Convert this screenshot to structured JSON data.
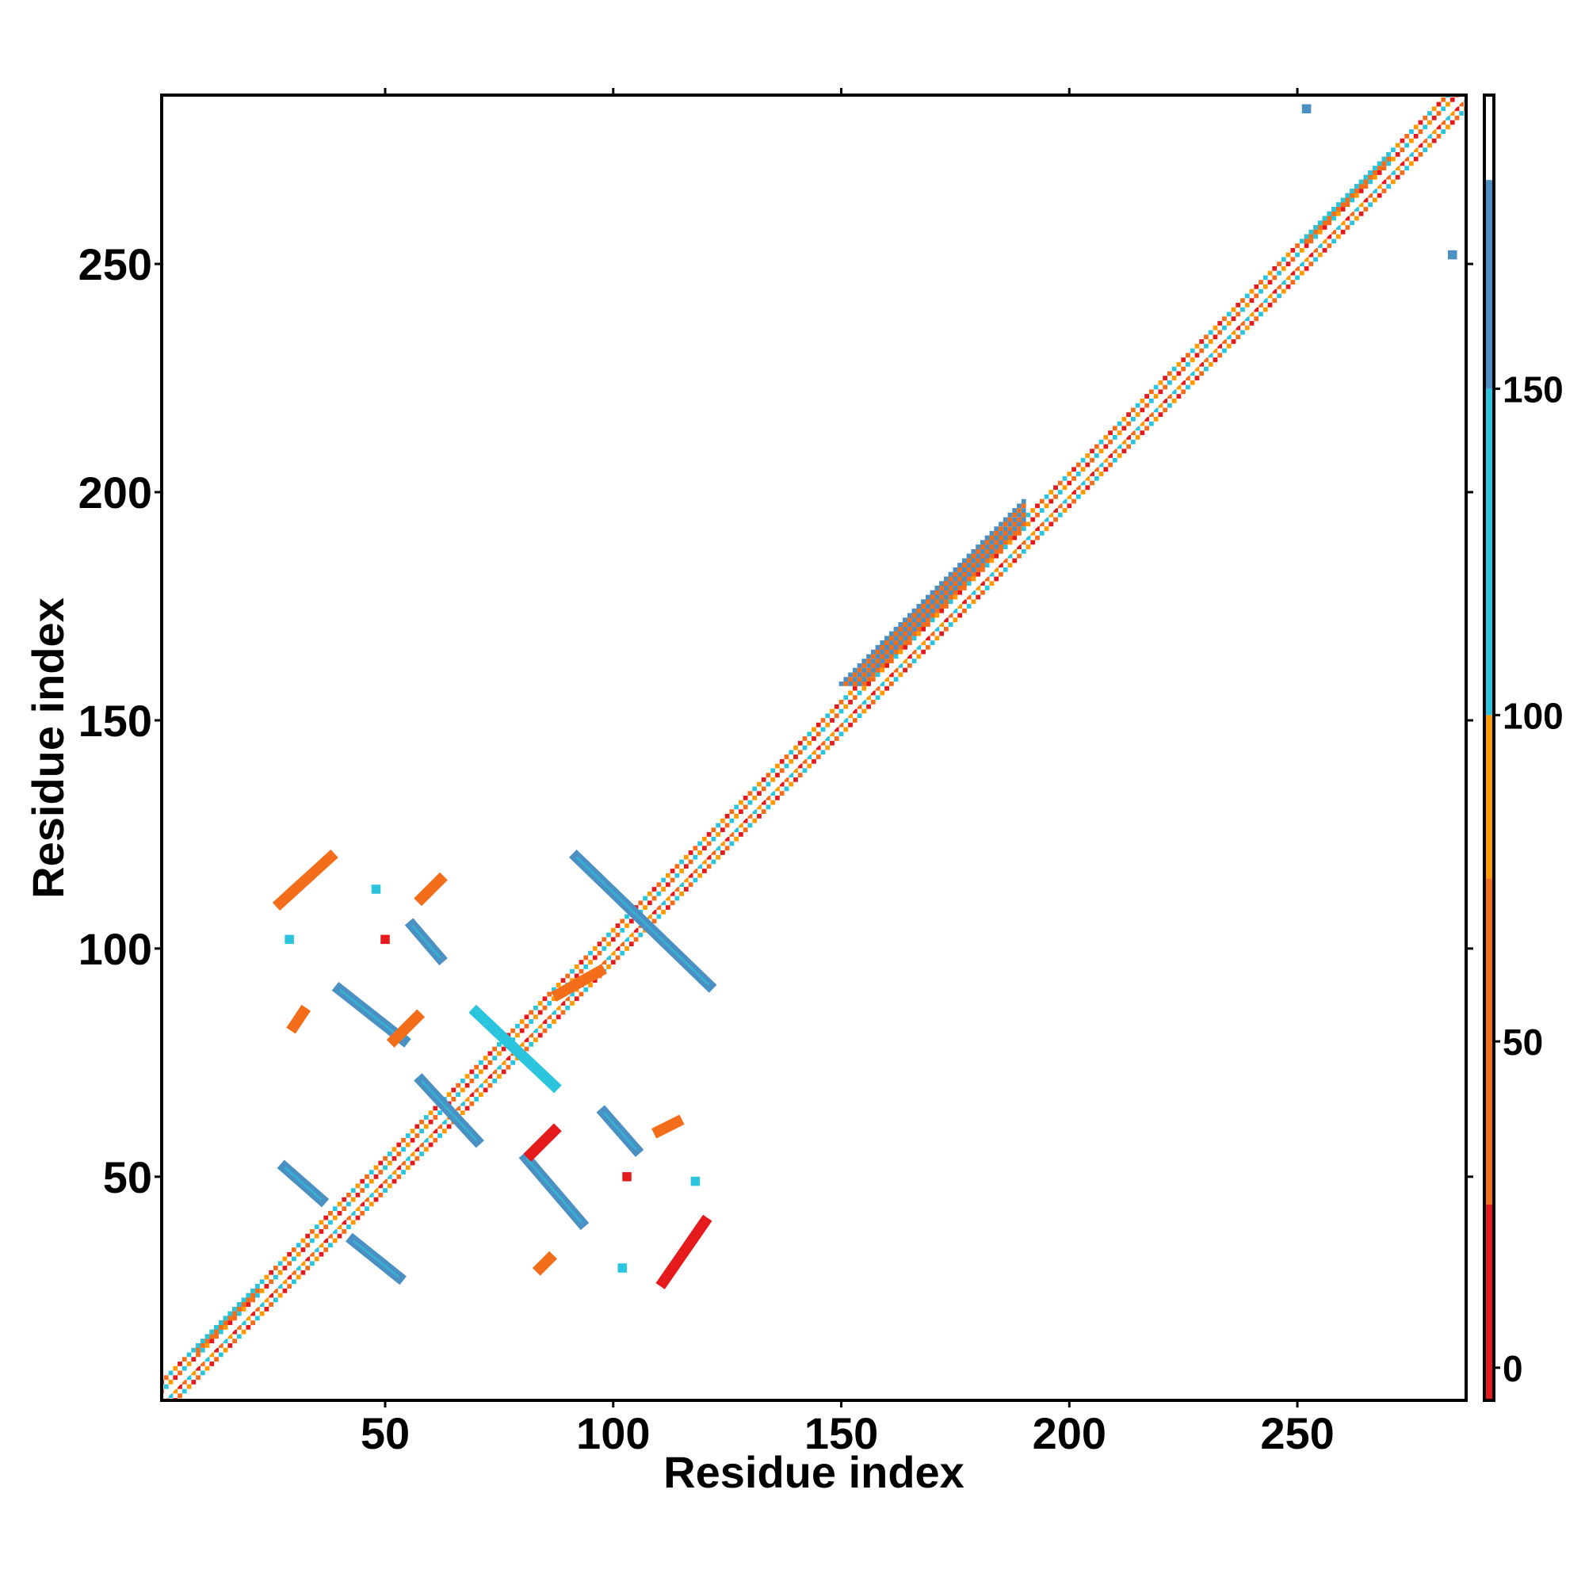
{
  "chart_data": {
    "type": "heatmap",
    "xlabel": "Residue index",
    "ylabel": "Residue index",
    "xlim": [
      1,
      287
    ],
    "ylim": [
      1,
      287
    ],
    "x_ticks": [
      50,
      100,
      150,
      200,
      250
    ],
    "y_ticks": [
      50,
      100,
      150,
      200,
      250
    ],
    "colorbar": {
      "ticks": [
        0,
        50,
        100,
        150
      ],
      "range": [
        -5,
        195
      ],
      "bands": [
        {
          "from": -5,
          "to": 25,
          "color": "#e41a1c"
        },
        {
          "from": 25,
          "to": 75,
          "color": "#f46d1a"
        },
        {
          "from": 75,
          "to": 100,
          "color": "#ff9900"
        },
        {
          "from": 100,
          "to": 150,
          "color": "#2bc4dd"
        },
        {
          "from": 150,
          "to": 182,
          "color": "#4a90c2"
        },
        {
          "from": 182,
          "to": 195,
          "color": "#ffffff"
        }
      ]
    },
    "diagonal": {
      "from": 1,
      "to": 287,
      "core_color": "#ffffff",
      "colors": [
        "#ff9900",
        "#e41a1c",
        "#f46d1a",
        "#2bc4dd"
      ]
    },
    "diagonal_widenings": [
      {
        "from": 12,
        "to": 22,
        "width": 2,
        "color": "#2bc4dd"
      },
      {
        "from": 158,
        "to": 190,
        "width": 6,
        "color": "#4a90c2"
      },
      {
        "from": 255,
        "to": 270,
        "width": 2,
        "color": "#2bc4dd"
      }
    ],
    "contact_segments": [
      {
        "x": [
          28,
          36
        ],
        "y": [
          52,
          45
        ],
        "value": 160
      },
      {
        "x": [
          43,
          53
        ],
        "y": [
          36,
          28
        ],
        "value": 160
      },
      {
        "x": [
          40,
          54
        ],
        "y": [
          91,
          80
        ],
        "value": 160
      },
      {
        "x": [
          56,
          62
        ],
        "y": [
          105,
          98
        ],
        "value": 160
      },
      {
        "x": [
          58,
          70
        ],
        "y": [
          71,
          58
        ],
        "value": 160
      },
      {
        "x": [
          92,
          121
        ],
        "y": [
          120,
          92
        ],
        "value": 160
      },
      {
        "x": [
          98,
          105
        ],
        "y": [
          64,
          56
        ],
        "value": 160
      },
      {
        "x": [
          81,
          93
        ],
        "y": [
          54,
          40
        ],
        "value": 160
      },
      {
        "x": [
          70,
          87
        ],
        "y": [
          86,
          70
        ],
        "value": 120
      },
      {
        "x": [
          27,
          38
        ],
        "y": [
          110,
          120
        ],
        "value": 30
      },
      {
        "x": [
          52,
          57
        ],
        "y": [
          80,
          85
        ],
        "value": 30
      },
      {
        "x": [
          111,
          120
        ],
        "y": [
          27,
          40
        ],
        "value": 20
      },
      {
        "x": [
          82,
          87
        ],
        "y": [
          55,
          60
        ],
        "value": 20
      },
      {
        "x": [
          88,
          97
        ],
        "y": [
          90,
          95
        ],
        "value": 70
      },
      {
        "x": [
          58,
          62
        ],
        "y": [
          111,
          115
        ],
        "value": 60
      },
      {
        "x": [
          84,
          86
        ],
        "y": [
          30,
          32
        ],
        "value": 60
      },
      {
        "x": [
          30,
          32
        ],
        "y": [
          83,
          86
        ],
        "value": 60
      },
      {
        "x": [
          110,
          114
        ],
        "y": [
          60,
          62
        ],
        "value": 70
      }
    ],
    "contact_points": [
      {
        "x": 29,
        "y": 102,
        "value": 140
      },
      {
        "x": 50,
        "y": 102,
        "value": 10
      },
      {
        "x": 102,
        "y": 30,
        "value": 140
      },
      {
        "x": 103,
        "y": 50,
        "value": 10
      },
      {
        "x": 48,
        "y": 113,
        "value": 140
      },
      {
        "x": 118,
        "y": 49,
        "value": 140
      },
      {
        "x": 252,
        "y": 284,
        "value": 160
      },
      {
        "x": 284,
        "y": 252,
        "value": 160
      }
    ]
  }
}
